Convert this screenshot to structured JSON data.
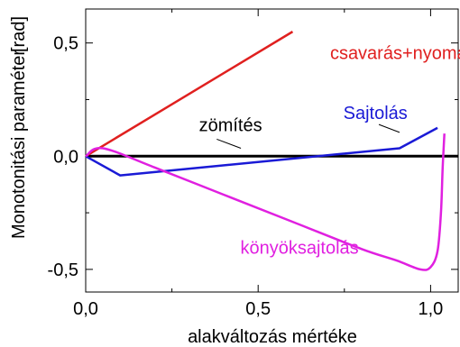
{
  "chart_data": {
    "type": "line",
    "xlabel": "alakváltozás mértéke",
    "ylabel": "Monotonitási paraméter",
    "yunit": "[rad]",
    "xlim": [
      0.0,
      1.08
    ],
    "ylim": [
      -0.6,
      0.65
    ],
    "xticks": [
      {
        "value": 0.0,
        "label": "0,0"
      },
      {
        "value": 0.5,
        "label": "0,5"
      },
      {
        "value": 1.0,
        "label": "1,0"
      }
    ],
    "yticks": [
      {
        "value": 0.5,
        "label": "0,5"
      },
      {
        "value": 0.0,
        "label": "0,0"
      },
      {
        "value": -0.5,
        "label": "-0,5"
      }
    ],
    "grid": false,
    "series": [
      {
        "name": "csavarás+nyomás",
        "color": "#e0201f",
        "x": [
          0.0,
          0.6
        ],
        "y": [
          0.0,
          0.55
        ]
      },
      {
        "name": "Sajtolás",
        "color": "#1a1ad6",
        "x": [
          0.0,
          0.1,
          0.91,
          1.02
        ],
        "y": [
          0.0,
          -0.085,
          0.035,
          0.125
        ]
      },
      {
        "name": "zömítés",
        "color": "#000000",
        "x": [
          0.0,
          1.08
        ],
        "y": [
          0.0,
          0.0
        ]
      },
      {
        "name": "könyöksajtolás",
        "color": "#e020e0",
        "x": [
          0.0,
          0.05,
          0.2,
          0.4,
          0.6,
          0.8,
          0.9,
          0.97,
          1.0,
          1.02,
          1.03,
          1.035,
          1.04
        ],
        "y": [
          0.0,
          0.035,
          -0.05,
          -0.17,
          -0.29,
          -0.41,
          -0.46,
          -0.5,
          -0.49,
          -0.42,
          -0.25,
          -0.05,
          0.1
        ]
      }
    ],
    "annotations": [
      {
        "text": "csavarás+nyomás",
        "color": "#e0201f",
        "x": 0.92,
        "y": 0.43
      },
      {
        "text": "Sajtolás",
        "color": "#1a1ad6",
        "x": 0.84,
        "y": 0.165
      },
      {
        "text": "zömítés",
        "color": "#000000",
        "x": 0.42,
        "y": 0.11
      },
      {
        "text": "könyöksajtolás",
        "color": "#e020e0",
        "x": 0.62,
        "y": -0.43
      }
    ],
    "leaders": [
      {
        "series": "Sajtolás",
        "from": [
          0.85,
          0.14
        ],
        "to": [
          0.91,
          0.105
        ]
      },
      {
        "series": "zömítés",
        "from": [
          0.38,
          0.075
        ],
        "to": [
          0.45,
          0.035
        ]
      }
    ]
  }
}
